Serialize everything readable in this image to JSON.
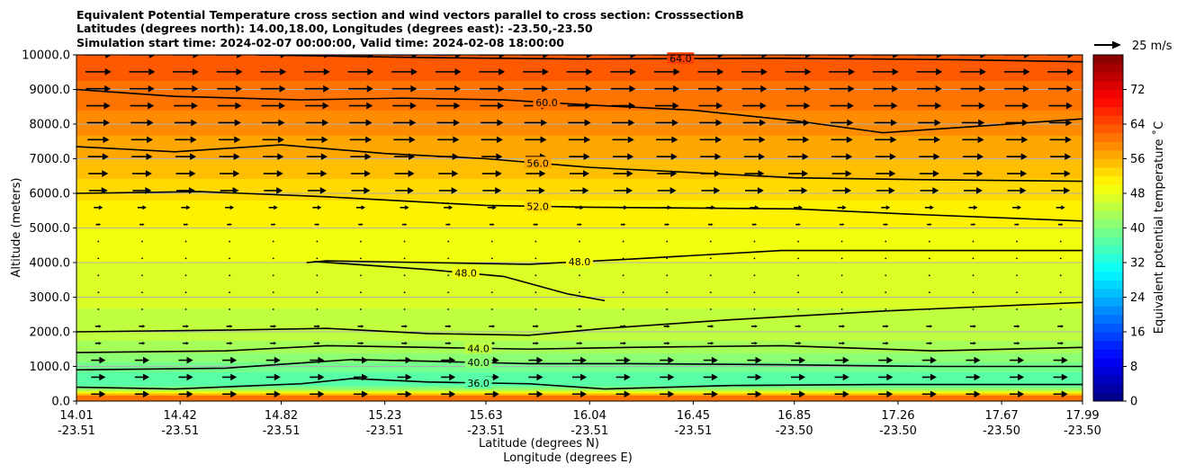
{
  "chart_data": {
    "type": "heatmap",
    "title_lines": [
      "Equivalent Potential Temperature cross section and wind vectors parallel to cross section: CrosssectionB",
      "Latitudes (degrees north): 14.00,18.00, Longitudes (degrees east): -23.50,-23.50",
      "Simulation start time: 2024-02-07 00:00:00, Valid time: 2024-02-08 18:00:00"
    ],
    "ylabel": "Altitude (meters)",
    "xlabel_lines": [
      "Latitude (degrees N)",
      "Longitude (degrees E)"
    ],
    "ylim": [
      0,
      10000
    ],
    "xlim": [
      14.01,
      17.99
    ],
    "y_ticks": [
      {
        "value": 0,
        "label": "0.0"
      },
      {
        "value": 1000,
        "label": "1000.0"
      },
      {
        "value": 2000,
        "label": "2000.0"
      },
      {
        "value": 3000,
        "label": "3000.0"
      },
      {
        "value": 4000,
        "label": "4000.0"
      },
      {
        "value": 5000,
        "label": "5000.0"
      },
      {
        "value": 6000,
        "label": "6000.0"
      },
      {
        "value": 7000,
        "label": "7000.0"
      },
      {
        "value": 8000,
        "label": "8000.0"
      },
      {
        "value": 9000,
        "label": "9000.0"
      },
      {
        "value": 10000,
        "label": "10000.0"
      }
    ],
    "x_ticks": [
      {
        "value": 14.01,
        "lat": "14.01",
        "lon": "-23.51"
      },
      {
        "value": 14.42,
        "lat": "14.42",
        "lon": "-23.51"
      },
      {
        "value": 14.82,
        "lat": "14.82",
        "lon": "-23.51"
      },
      {
        "value": 15.23,
        "lat": "15.23",
        "lon": "-23.51"
      },
      {
        "value": 15.63,
        "lat": "15.63",
        "lon": "-23.51"
      },
      {
        "value": 16.04,
        "lat": "16.04",
        "lon": "-23.51"
      },
      {
        "value": 16.45,
        "lat": "16.45",
        "lon": "-23.51"
      },
      {
        "value": 16.85,
        "lat": "16.85",
        "lon": "-23.50"
      },
      {
        "value": 17.26,
        "lat": "17.26",
        "lon": "-23.50"
      },
      {
        "value": 17.67,
        "lat": "17.67",
        "lon": "-23.50"
      },
      {
        "value": 17.99,
        "lat": "17.99",
        "lon": "-23.50"
      }
    ],
    "grid": "horizontal",
    "colorbar": {
      "label": "Equivalent potential temperature $^\\circ$C",
      "label_text": "Equivalent potential temperature ˚C",
      "range": [
        0,
        80
      ],
      "ticks": [
        0,
        8,
        16,
        24,
        32,
        40,
        48,
        56,
        64,
        72
      ],
      "levels": 40,
      "colormap": "jet"
    },
    "quiver_key": {
      "label": "25 m/s",
      "speed": 25
    },
    "vertical_profile": [
      {
        "z": 0,
        "theta": 62
      },
      {
        "z": 150,
        "theta": 60
      },
      {
        "z": 300,
        "theta": 44
      },
      {
        "z": 500,
        "theta": 36
      },
      {
        "z": 1000,
        "theta": 39
      },
      {
        "z": 1500,
        "theta": 43
      },
      {
        "z": 2000,
        "theta": 45
      },
      {
        "z": 3000,
        "theta": 46.5
      },
      {
        "z": 4000,
        "theta": 48
      },
      {
        "z": 5000,
        "theta": 50
      },
      {
        "z": 6000,
        "theta": 52.5
      },
      {
        "z": 7000,
        "theta": 56
      },
      {
        "z": 8000,
        "theta": 59
      },
      {
        "z": 9000,
        "theta": 61.5
      },
      {
        "z": 10000,
        "theta": 63.5
      }
    ],
    "contours": [
      {
        "value": 64.0,
        "label": "64.0",
        "points": [
          [
            14.72,
            10000
          ],
          [
            15.4,
            9920
          ],
          [
            16.0,
            9880
          ],
          [
            16.8,
            9900
          ],
          [
            17.5,
            9860
          ],
          [
            17.99,
            9800
          ]
        ]
      },
      {
        "value": 60.0,
        "label": "60.0",
        "points": [
          [
            14.01,
            9000
          ],
          [
            14.4,
            8800
          ],
          [
            14.9,
            8700
          ],
          [
            15.3,
            8750
          ],
          [
            15.7,
            8700
          ],
          [
            16.04,
            8550
          ],
          [
            16.45,
            8400
          ],
          [
            16.85,
            8100
          ],
          [
            17.2,
            7750
          ],
          [
            17.6,
            7950
          ],
          [
            17.99,
            8150
          ]
        ]
      },
      {
        "value": 56.0,
        "label": "56.0",
        "points": [
          [
            14.01,
            7350
          ],
          [
            14.4,
            7200
          ],
          [
            14.82,
            7400
          ],
          [
            15.23,
            7150
          ],
          [
            15.63,
            7000
          ],
          [
            16.04,
            6750
          ],
          [
            16.45,
            6600
          ],
          [
            16.85,
            6450
          ],
          [
            17.3,
            6400
          ],
          [
            17.99,
            6350
          ]
        ]
      },
      {
        "value": 52.0,
        "label": "52.0",
        "points": [
          [
            14.01,
            6000
          ],
          [
            14.5,
            6050
          ],
          [
            15.0,
            5900
          ],
          [
            15.63,
            5650
          ],
          [
            16.04,
            5600
          ],
          [
            16.85,
            5550
          ],
          [
            17.3,
            5400
          ],
          [
            17.99,
            5200
          ]
        ]
      },
      {
        "value": 48.0,
        "label": "48.0",
        "points": [
          [
            14.92,
            4000
          ],
          [
            15.0,
            4050
          ],
          [
            15.4,
            4000
          ],
          [
            15.8,
            3950
          ],
          [
            16.2,
            4100
          ],
          [
            16.8,
            4350
          ],
          [
            17.4,
            4350
          ],
          [
            17.99,
            4350
          ]
        ]
      },
      {
        "value": 48.0,
        "label": "48.0",
        "points": [
          [
            14.95,
            4030
          ],
          [
            15.4,
            3800
          ],
          [
            15.7,
            3600
          ],
          [
            15.95,
            3100
          ],
          [
            16.1,
            2900
          ]
        ]
      },
      {
        "value": 46.0,
        "label": "",
        "points": [
          [
            14.01,
            2000
          ],
          [
            14.6,
            2050
          ],
          [
            15.0,
            2100
          ],
          [
            15.4,
            1950
          ],
          [
            15.8,
            1900
          ],
          [
            16.1,
            2100
          ],
          [
            16.6,
            2350
          ],
          [
            17.2,
            2600
          ],
          [
            17.99,
            2850
          ]
        ]
      },
      {
        "value": 44.0,
        "label": "44.0",
        "points": [
          [
            14.01,
            1400
          ],
          [
            14.6,
            1450
          ],
          [
            15.0,
            1600
          ],
          [
            15.4,
            1550
          ],
          [
            15.8,
            1500
          ],
          [
            16.2,
            1550
          ],
          [
            16.8,
            1600
          ],
          [
            17.4,
            1450
          ],
          [
            17.99,
            1550
          ]
        ]
      },
      {
        "value": 40.0,
        "label": "40.0",
        "points": [
          [
            14.01,
            900
          ],
          [
            14.6,
            950
          ],
          [
            15.1,
            1200
          ],
          [
            15.4,
            1150
          ],
          [
            15.8,
            1080
          ],
          [
            16.2,
            1080
          ],
          [
            16.8,
            1050
          ],
          [
            17.4,
            1000
          ],
          [
            17.99,
            1000
          ]
        ]
      },
      {
        "value": 36.0,
        "label": "36.0",
        "points": [
          [
            14.01,
            400
          ],
          [
            14.4,
            350
          ],
          [
            14.9,
            500
          ],
          [
            15.1,
            650
          ],
          [
            15.4,
            550
          ],
          [
            15.8,
            500
          ],
          [
            16.1,
            350
          ],
          [
            16.6,
            450
          ],
          [
            17.2,
            480
          ],
          [
            17.99,
            480
          ]
        ]
      }
    ]
  }
}
